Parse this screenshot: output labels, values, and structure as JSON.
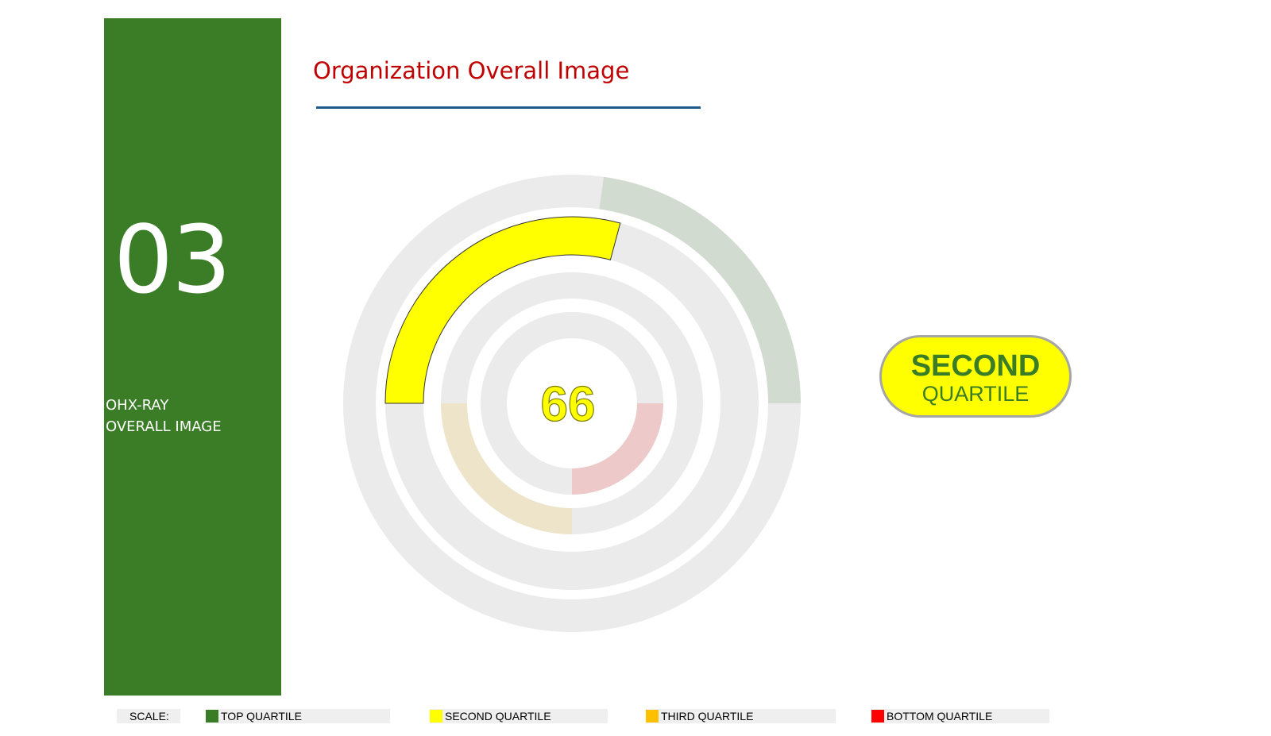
{
  "sidebar": {
    "section_number": "03",
    "label_line1": "OHX-RAY",
    "label_line2": "OVERALL IMAGE"
  },
  "header": {
    "title": "Organization Overall Image"
  },
  "chart_data": {
    "type": "radial-gauge",
    "score": "66",
    "quartile_label_line1": "SECOND",
    "quartile_label_line2": "QUARTILE",
    "highlighted_quartile": "SECOND QUARTILE",
    "rings": [
      {
        "ring": "outer",
        "quartile": "TOP QUARTILE",
        "color": "#3b7d27",
        "highlighted": false
      },
      {
        "ring": "second",
        "quartile": "SECOND QUARTILE",
        "color": "#ffff00",
        "highlighted": true
      },
      {
        "ring": "third",
        "quartile": "THIRD QUARTILE",
        "color": "#ffc000",
        "highlighted": false
      },
      {
        "ring": "inner",
        "quartile": "BOTTOM QUARTILE",
        "color": "#ff0000",
        "highlighted": false
      }
    ],
    "track_color": "#ebebeb"
  },
  "scale": {
    "label": "SCALE:",
    "items": [
      {
        "label": "TOP QUARTILE",
        "color": "#3b7d27"
      },
      {
        "label": "SECOND QUARTILE",
        "color": "#ffff00"
      },
      {
        "label": "THIRD QUARTILE",
        "color": "#ffc000"
      },
      {
        "label": "BOTTOM QUARTILE",
        "color": "#ff0000"
      }
    ]
  }
}
